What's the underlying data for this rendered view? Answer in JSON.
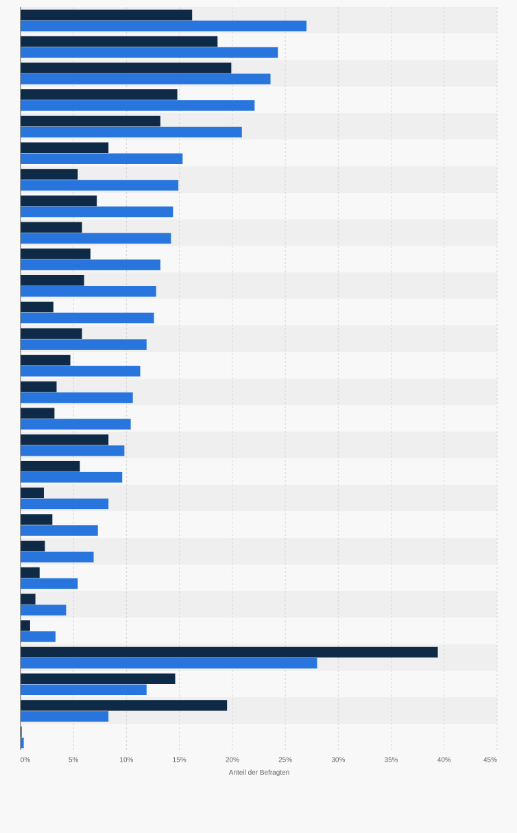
{
  "chart_data": {
    "type": "bar",
    "orientation": "horizontal",
    "categories": [
      "",
      "",
      "",
      "",
      "",
      "",
      "",
      "",
      "",
      "",
      "",
      "",
      "",
      "",
      "",
      "",
      "",
      "",
      "",
      "",
      "",
      "",
      "",
      "",
      "",
      "",
      "",
      ""
    ],
    "series": [
      {
        "color": "#0f2a47",
        "values": [
          16.2,
          18.6,
          19.9,
          14.8,
          13.2,
          8.3,
          5.4,
          7.2,
          5.8,
          6.6,
          6.0,
          3.1,
          5.8,
          4.7,
          3.4,
          3.2,
          8.3,
          5.6,
          2.2,
          3.0,
          2.3,
          1.8,
          1.4,
          0.9,
          39.4,
          14.6,
          19.5,
          0.1
        ]
      },
      {
        "color": "#2876dd",
        "values": [
          27.0,
          24.3,
          23.6,
          22.1,
          20.9,
          15.3,
          14.9,
          14.4,
          14.2,
          13.2,
          12.8,
          12.6,
          11.9,
          11.3,
          10.6,
          10.4,
          9.8,
          9.6,
          8.3,
          7.3,
          6.9,
          5.4,
          4.3,
          3.3,
          28.0,
          11.9,
          8.3,
          0.3
        ]
      }
    ],
    "xlabel": "Anteil der Befragten",
    "ylabel": "",
    "xlim": [
      0,
      45
    ],
    "x_ticks": [
      "0%",
      "5%",
      "10%",
      "15%",
      "20%",
      "25%",
      "30%",
      "35%",
      "40%",
      "45%"
    ],
    "grid": true,
    "legend": "none"
  }
}
